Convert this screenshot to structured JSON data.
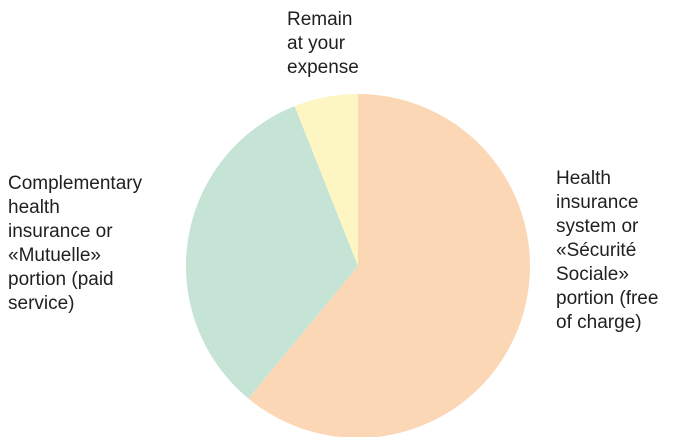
{
  "chart_data": {
    "type": "pie",
    "title": "",
    "slices": [
      {
        "label": "Health\ninsurance\nsystem or\n«Sécurité\nSociale»\nportion (free\nof charge)",
        "value": 61,
        "color": "#fcd7b6"
      },
      {
        "label": "Complementary\nhealth\ninsurance or\n«Mutuelle»\nportion (paid\nservice)",
        "value": 33,
        "color": "#c5e4d6"
      },
      {
        "label": "Remain\nat your\nexpense",
        "value": 6,
        "color": "#fef6c2"
      }
    ],
    "start": "12 o'clock",
    "direction": "clockwise"
  }
}
